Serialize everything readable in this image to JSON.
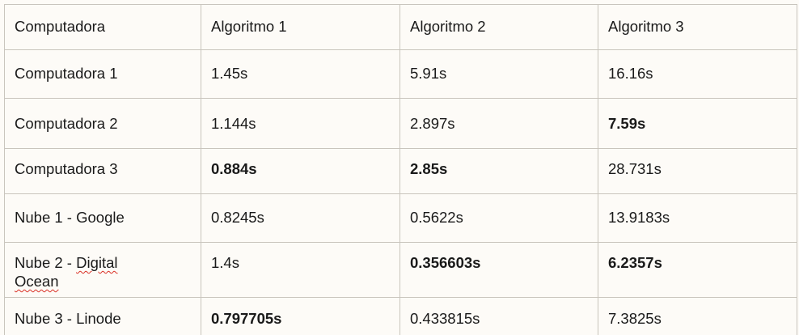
{
  "table": {
    "headers": [
      "Computadora",
      "Algoritmo 1",
      "Algoritmo 2",
      "Algoritmo 3"
    ],
    "rows": [
      {
        "computadora": "Computadora 1",
        "a1": "1.45s",
        "a2": "5.91s",
        "a3": "16.16s",
        "bold": [
          false,
          false,
          false
        ]
      },
      {
        "computadora": "Computadora 2",
        "a1": "1.144s",
        "a2": "2.897s",
        "a3": "7.59s",
        "bold": [
          false,
          false,
          true
        ]
      },
      {
        "computadora": "Computadora 3",
        "a1": "0.884s",
        "a2": "2.85s",
        "a3": "28.731s",
        "bold": [
          true,
          true,
          false
        ]
      },
      {
        "computadora": "Nube 1 - Google",
        "a1": "0.8245s",
        "a2": "0.5622s",
        "a3": "13.9183s",
        "bold": [
          false,
          false,
          false
        ]
      },
      {
        "computadora_prefix": "Nube 2 - ",
        "computadora_word1": "Digital",
        "computadora_word2": "Ocean",
        "a1": "1.4s",
        "a2": "0.356603s",
        "a3": "6.2357s",
        "bold": [
          false,
          true,
          true
        ]
      },
      {
        "computadora": "Nube 3 - Linode",
        "a1": "0.797705s",
        "a2": "0.433815s",
        "a3": "7.3825s",
        "bold": [
          true,
          false,
          false
        ]
      }
    ]
  },
  "colors": {
    "page_background": "#fdfbf7",
    "border": "#c9c5bd",
    "text": "#1a1a1a",
    "spellcheck_underline": "#d93025"
  }
}
